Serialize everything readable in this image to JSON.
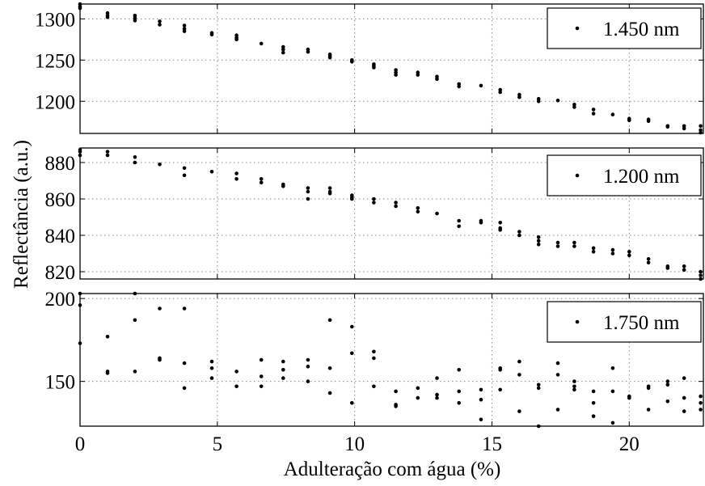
{
  "chart_data": {
    "type": "scatter",
    "xlabel": "Adulteração com água (%)",
    "ylabel": "Reflectância (a.u.)",
    "xlim": [
      0,
      22.7
    ],
    "xticks": [
      "0",
      "5",
      "10",
      "15",
      "20"
    ],
    "grid": true,
    "legend_position": "top-right",
    "panels": [
      {
        "series_name": "1.450 nm",
        "ylim": [
          1161,
          1318
        ],
        "yticks": [
          "1200",
          "1250",
          "1300"
        ],
        "points": [
          [
            0,
            1318
          ],
          [
            0,
            1315
          ],
          [
            0,
            1313
          ],
          [
            1,
            1307
          ],
          [
            1,
            1304
          ],
          [
            1,
            1302
          ],
          [
            2,
            1304
          ],
          [
            2,
            1301
          ],
          [
            2,
            1298
          ],
          [
            2.9,
            1297
          ],
          [
            2.9,
            1293
          ],
          [
            3.8,
            1292
          ],
          [
            3.8,
            1288
          ],
          [
            3.8,
            1285
          ],
          [
            4.8,
            1283
          ],
          [
            4.8,
            1281
          ],
          [
            5.7,
            1280
          ],
          [
            5.7,
            1277
          ],
          [
            5.7,
            1275
          ],
          [
            6.6,
            1270
          ],
          [
            7.4,
            1266
          ],
          [
            7.4,
            1263
          ],
          [
            7.4,
            1259
          ],
          [
            8.3,
            1263
          ],
          [
            8.3,
            1260
          ],
          [
            9.1,
            1257
          ],
          [
            9.1,
            1255
          ],
          [
            9.1,
            1253
          ],
          [
            9.9,
            1250
          ],
          [
            9.9,
            1248
          ],
          [
            10.7,
            1245
          ],
          [
            10.7,
            1243
          ],
          [
            10.7,
            1241
          ],
          [
            11.5,
            1238
          ],
          [
            11.5,
            1235
          ],
          [
            11.5,
            1232
          ],
          [
            12.3,
            1235
          ],
          [
            12.3,
            1232
          ],
          [
            13,
            1230
          ],
          [
            13,
            1227
          ],
          [
            13.8,
            1221
          ],
          [
            13.8,
            1218
          ],
          [
            14.6,
            1219
          ],
          [
            15.3,
            1214
          ],
          [
            15.3,
            1211
          ],
          [
            16,
            1208
          ],
          [
            16,
            1205
          ],
          [
            16.7,
            1203
          ],
          [
            16.7,
            1200
          ],
          [
            17.4,
            1201
          ],
          [
            18,
            1196
          ],
          [
            18,
            1193
          ],
          [
            18.7,
            1190
          ],
          [
            18.7,
            1185
          ],
          [
            19.4,
            1184
          ],
          [
            20,
            1179
          ],
          [
            20,
            1177
          ],
          [
            20.7,
            1178
          ],
          [
            20.7,
            1176
          ],
          [
            21.4,
            1170
          ],
          [
            21.4,
            1169
          ],
          [
            22,
            1170
          ],
          [
            22,
            1167
          ],
          [
            22.6,
            1170
          ],
          [
            22.6,
            1165
          ],
          [
            22.6,
            1162
          ]
        ]
      },
      {
        "series_name": "1.200 nm",
        "ylim": [
          816,
          888
        ],
        "yticks": [
          "820",
          "840",
          "860",
          "880"
        ],
        "points": [
          [
            0,
            887
          ],
          [
            0,
            886
          ],
          [
            0,
            884
          ],
          [
            1,
            886
          ],
          [
            1,
            884
          ],
          [
            2,
            883
          ],
          [
            2,
            880
          ],
          [
            2.9,
            879
          ],
          [
            3.8,
            877
          ],
          [
            3.8,
            873
          ],
          [
            4.8,
            875
          ],
          [
            5.7,
            874
          ],
          [
            5.7,
            871
          ],
          [
            6.6,
            871
          ],
          [
            6.6,
            869
          ],
          [
            7.4,
            868
          ],
          [
            7.4,
            867
          ],
          [
            8.3,
            866
          ],
          [
            8.3,
            864
          ],
          [
            8.3,
            860
          ],
          [
            9.1,
            866
          ],
          [
            9.1,
            864
          ],
          [
            9.1,
            863
          ],
          [
            9.9,
            862
          ],
          [
            9.9,
            861
          ],
          [
            9.9,
            860
          ],
          [
            10.7,
            860
          ],
          [
            10.7,
            858
          ],
          [
            11.5,
            858
          ],
          [
            11.5,
            856
          ],
          [
            12.3,
            855
          ],
          [
            12.3,
            853
          ],
          [
            13,
            852
          ],
          [
            13.8,
            848
          ],
          [
            13.8,
            845
          ],
          [
            14.6,
            848
          ],
          [
            14.6,
            847
          ],
          [
            15.3,
            847
          ],
          [
            15.3,
            844
          ],
          [
            15.3,
            843
          ],
          [
            16,
            842
          ],
          [
            16,
            840
          ],
          [
            16.7,
            839
          ],
          [
            16.7,
            837
          ],
          [
            16.7,
            835
          ],
          [
            17.4,
            836
          ],
          [
            17.4,
            834
          ],
          [
            18,
            836
          ],
          [
            18,
            834
          ],
          [
            18.7,
            833
          ],
          [
            18.7,
            831
          ],
          [
            19.4,
            832
          ],
          [
            19.4,
            830
          ],
          [
            20,
            831
          ],
          [
            20,
            829
          ],
          [
            20.7,
            827
          ],
          [
            20.7,
            825
          ],
          [
            21.4,
            823
          ],
          [
            21.4,
            822
          ],
          [
            22,
            823
          ],
          [
            22,
            821
          ],
          [
            22.6,
            820
          ],
          [
            22.6,
            818
          ],
          [
            22.6,
            816
          ]
        ]
      },
      {
        "series_name": "1.750 nm",
        "ylim": [
          123,
          203
        ],
        "yticks": [
          "150",
          "200"
        ],
        "points": [
          [
            0,
            203
          ],
          [
            0,
            196
          ],
          [
            0,
            173
          ],
          [
            1,
            177
          ],
          [
            1,
            156
          ],
          [
            1,
            155
          ],
          [
            2,
            203
          ],
          [
            2,
            187
          ],
          [
            2,
            156
          ],
          [
            2.9,
            194
          ],
          [
            2.9,
            164
          ],
          [
            2.9,
            163
          ],
          [
            3.8,
            194
          ],
          [
            3.8,
            161
          ],
          [
            3.8,
            146
          ],
          [
            4.8,
            162
          ],
          [
            4.8,
            158
          ],
          [
            4.8,
            152
          ],
          [
            5.7,
            156
          ],
          [
            5.7,
            147
          ],
          [
            6.6,
            163
          ],
          [
            6.6,
            153
          ],
          [
            6.6,
            147
          ],
          [
            7.4,
            162
          ],
          [
            7.4,
            157
          ],
          [
            7.4,
            152
          ],
          [
            8.3,
            163
          ],
          [
            8.3,
            159
          ],
          [
            8.3,
            150
          ],
          [
            9.1,
            187
          ],
          [
            9.1,
            158
          ],
          [
            9.1,
            143
          ],
          [
            9.9,
            183
          ],
          [
            9.9,
            167
          ],
          [
            9.9,
            137
          ],
          [
            10.7,
            168
          ],
          [
            10.7,
            164
          ],
          [
            10.7,
            147
          ],
          [
            11.5,
            144
          ],
          [
            11.5,
            136
          ],
          [
            11.5,
            135
          ],
          [
            12.3,
            146
          ],
          [
            12.3,
            140
          ],
          [
            13,
            152
          ],
          [
            13,
            142
          ],
          [
            13,
            140
          ],
          [
            13.8,
            157
          ],
          [
            13.8,
            144
          ],
          [
            13.8,
            137
          ],
          [
            14.6,
            145
          ],
          [
            14.6,
            139
          ],
          [
            14.6,
            127
          ],
          [
            15.3,
            158
          ],
          [
            15.3,
            157
          ],
          [
            15.3,
            145
          ],
          [
            16,
            162
          ],
          [
            16,
            154
          ],
          [
            16,
            132
          ],
          [
            16.7,
            148
          ],
          [
            16.7,
            146
          ],
          [
            16.7,
            123
          ],
          [
            17.4,
            161
          ],
          [
            17.4,
            154
          ],
          [
            17.4,
            133
          ],
          [
            18,
            150
          ],
          [
            18,
            147
          ],
          [
            18,
            145
          ],
          [
            18.7,
            144
          ],
          [
            18.7,
            137
          ],
          [
            18.7,
            129
          ],
          [
            19.4,
            158
          ],
          [
            19.4,
            144
          ],
          [
            19.4,
            125
          ],
          [
            20,
            141
          ],
          [
            20,
            140
          ],
          [
            20.7,
            147
          ],
          [
            20.7,
            146
          ],
          [
            20.7,
            133
          ],
          [
            21.4,
            150
          ],
          [
            21.4,
            148
          ],
          [
            21.4,
            138
          ],
          [
            22,
            152
          ],
          [
            22,
            140
          ],
          [
            22,
            132
          ],
          [
            22.6,
            141
          ],
          [
            22.6,
            137
          ],
          [
            22.6,
            133
          ]
        ]
      }
    ]
  }
}
